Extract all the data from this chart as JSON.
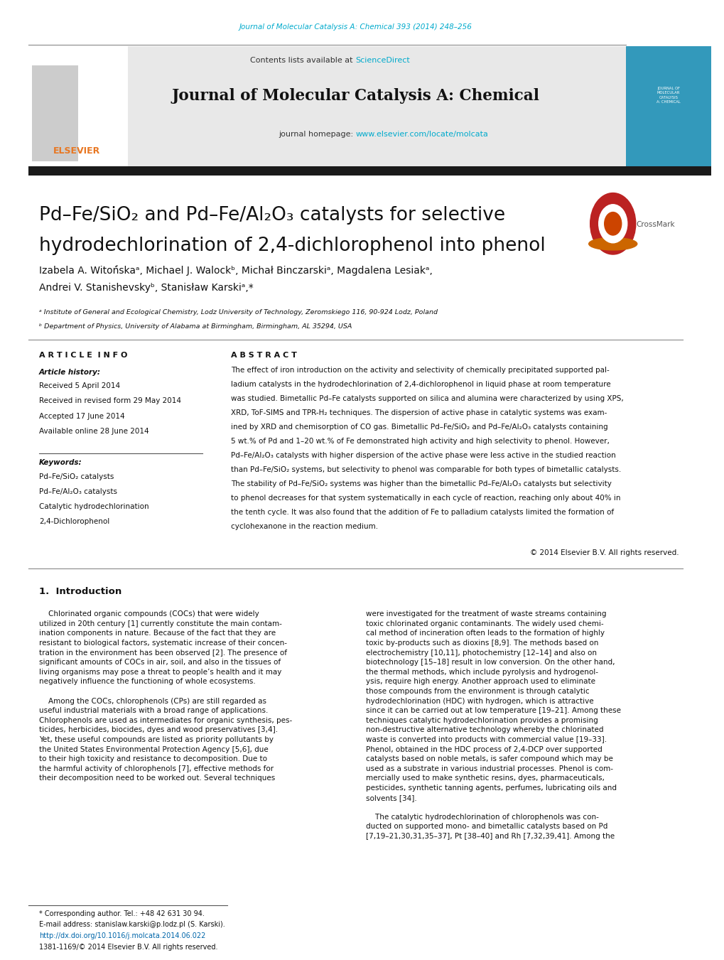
{
  "page_width": 10.2,
  "page_height": 13.51,
  "bg_color": "#ffffff",
  "top_journal_ref": "Journal of Molecular Catalysis A: Chemical 393 (2014) 248–256",
  "top_journal_ref_color": "#00aacc",
  "journal_name": "Journal of Molecular Catalysis A: Chemical",
  "contents_text": "Contents lists available at ",
  "sciencedirect_text": "ScienceDirect",
  "sciencedirect_color": "#00aacc",
  "homepage_text": "journal homepage: ",
  "homepage_url": "www.elsevier.com/locate/molcata",
  "homepage_url_color": "#00aacc",
  "header_bg": "#e8e8e8",
  "dark_bar_color": "#1a1a1a",
  "article_info_header": "A R T I C L E  I N F O",
  "abstract_header": "A B S T R A C T",
  "article_history_label": "Article history:",
  "received": "Received 5 April 2014",
  "revised": "Received in revised form 29 May 2014",
  "accepted": "Accepted 17 June 2014",
  "available": "Available online 28 June 2014",
  "keywords_label": "Keywords:",
  "kw1": "Pd–Fe/SiO₂ catalysts",
  "kw2": "Pd–Fe/Al₂O₃ catalysts",
  "kw3": "Catalytic hydrodechlorination",
  "kw4": "2,4-Dichlorophenol",
  "copyright": "© 2014 Elsevier B.V. All rights reserved.",
  "section1_title": "1.  Introduction",
  "footnote_star": "* Corresponding author. Tel.: +48 42 631 30 94.",
  "footnote_email": "E-mail address: stanislaw.karski@p.lodz.pl (S. Karski).",
  "footnote_doi": "http://dx.doi.org/10.1016/j.molcata.2014.06.022",
  "footnote_issn": "1381-1169/© 2014 Elsevier B.V. All rights reserved."
}
